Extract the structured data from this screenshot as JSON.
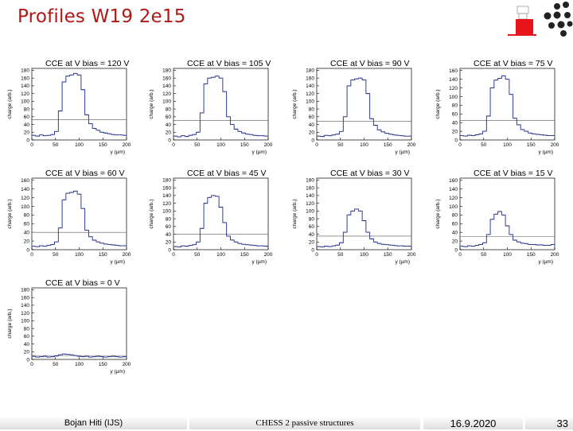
{
  "slide": {
    "title": "Profiles W19 2e15",
    "footer": {
      "author": "Bojan Hiti (IJS)",
      "subject": "CHESS 2 passive structures",
      "date": "16.9.2020",
      "page": "33"
    }
  },
  "colors": {
    "title": "#b01818",
    "logo": "#e8141b",
    "series": "#1c2a8a",
    "hline": "#000000"
  },
  "chart_data": [
    {
      "type": "line",
      "title": "CCE at V bias =  120 V",
      "xlabel": "y (µm)",
      "ylabel": "charge (arb.)",
      "xlim": [
        0,
        200
      ],
      "ylim": [
        0,
        185
      ],
      "yticks": [
        0,
        20,
        40,
        60,
        80,
        100,
        120,
        140,
        160,
        180
      ],
      "xticks": [
        0,
        50,
        100,
        150,
        200
      ],
      "threshold": 52,
      "x": [
        0,
        8,
        16,
        24,
        32,
        40,
        48,
        56,
        64,
        72,
        80,
        88,
        96,
        104,
        112,
        120,
        128,
        136,
        144,
        152,
        160,
        168,
        176,
        184,
        192,
        200
      ],
      "y": [
        12,
        10,
        13,
        11,
        12,
        14,
        22,
        75,
        150,
        165,
        168,
        172,
        168,
        130,
        65,
        42,
        30,
        25,
        20,
        18,
        16,
        14,
        13,
        13,
        12,
        12
      ]
    },
    {
      "type": "line",
      "title": "CCE at V bias =  105 V",
      "xlabel": "y (µm)",
      "ylabel": "charge (arb.)",
      "xlim": [
        0,
        200
      ],
      "ylim": [
        0,
        185
      ],
      "yticks": [
        0,
        20,
        40,
        60,
        80,
        100,
        120,
        140,
        160,
        180
      ],
      "xticks": [
        0,
        50,
        100,
        150,
        200
      ],
      "threshold": 50,
      "x": [
        0,
        8,
        16,
        24,
        32,
        40,
        48,
        56,
        64,
        72,
        80,
        88,
        96,
        104,
        112,
        120,
        128,
        136,
        144,
        152,
        160,
        168,
        176,
        184,
        192,
        200
      ],
      "y": [
        10,
        8,
        11,
        9,
        12,
        14,
        20,
        70,
        145,
        160,
        162,
        165,
        160,
        125,
        60,
        40,
        28,
        22,
        18,
        15,
        14,
        12,
        11,
        11,
        10,
        10
      ]
    },
    {
      "type": "line",
      "title": "CCE at V bias =  90 V",
      "xlabel": "y (µm)",
      "ylabel": "charge (arb.)",
      "xlim": [
        0,
        200
      ],
      "ylim": [
        0,
        185
      ],
      "yticks": [
        0,
        20,
        40,
        60,
        80,
        100,
        120,
        140,
        160,
        180
      ],
      "xticks": [
        0,
        50,
        100,
        150,
        200
      ],
      "threshold": 48,
      "x": [
        0,
        8,
        16,
        24,
        32,
        40,
        48,
        56,
        64,
        72,
        80,
        88,
        96,
        104,
        112,
        120,
        128,
        136,
        144,
        152,
        160,
        168,
        176,
        184,
        192,
        200
      ],
      "y": [
        10,
        9,
        12,
        11,
        13,
        15,
        22,
        60,
        140,
        155,
        158,
        160,
        155,
        120,
        55,
        38,
        26,
        21,
        17,
        15,
        13,
        12,
        11,
        10,
        10,
        10
      ]
    },
    {
      "type": "line",
      "title": "CCE at V bias =  75 V",
      "xlabel": "y (µm)",
      "ylabel": "charge (arb.)",
      "xlim": [
        0,
        200
      ],
      "ylim": [
        0,
        165
      ],
      "yticks": [
        0,
        20,
        40,
        60,
        80,
        100,
        120,
        140,
        160
      ],
      "xticks": [
        0,
        50,
        100,
        150,
        200
      ],
      "threshold": 45,
      "x": [
        0,
        8,
        16,
        24,
        32,
        40,
        48,
        56,
        64,
        72,
        80,
        88,
        96,
        104,
        112,
        120,
        128,
        136,
        144,
        152,
        160,
        168,
        176,
        184,
        192,
        200
      ],
      "y": [
        10,
        9,
        11,
        10,
        12,
        14,
        20,
        55,
        120,
        138,
        142,
        148,
        140,
        105,
        50,
        35,
        24,
        20,
        16,
        14,
        13,
        12,
        11,
        10,
        10,
        10
      ]
    },
    {
      "type": "line",
      "title": "CCE at V bias =  60 V",
      "xlabel": "y (µm)",
      "ylabel": "charge (arb.)",
      "xlim": [
        0,
        200
      ],
      "ylim": [
        0,
        165
      ],
      "yticks": [
        0,
        20,
        40,
        60,
        80,
        100,
        120,
        140,
        160
      ],
      "xticks": [
        0,
        50,
        100,
        150,
        200
      ],
      "threshold": 40,
      "x": [
        0,
        8,
        16,
        24,
        32,
        40,
        48,
        56,
        64,
        72,
        80,
        88,
        96,
        104,
        112,
        120,
        128,
        136,
        144,
        152,
        160,
        168,
        176,
        184,
        192,
        200
      ],
      "y": [
        8,
        7,
        9,
        8,
        10,
        12,
        18,
        50,
        115,
        130,
        132,
        135,
        128,
        95,
        45,
        30,
        22,
        18,
        15,
        13,
        12,
        11,
        10,
        9,
        9,
        9
      ]
    },
    {
      "type": "line",
      "title": "CCE at V bias =  45 V",
      "xlabel": "y (µm)",
      "ylabel": "charge (arb.)",
      "xlim": [
        0,
        200
      ],
      "ylim": [
        0,
        185
      ],
      "yticks": [
        0,
        20,
        40,
        60,
        80,
        100,
        120,
        140,
        160,
        180
      ],
      "xticks": [
        0,
        50,
        100,
        150,
        200
      ],
      "threshold": 40,
      "x": [
        0,
        8,
        16,
        24,
        32,
        40,
        48,
        56,
        64,
        72,
        80,
        88,
        96,
        104,
        112,
        120,
        128,
        136,
        144,
        152,
        160,
        168,
        176,
        184,
        192,
        200
      ],
      "y": [
        8,
        7,
        10,
        9,
        11,
        13,
        20,
        55,
        120,
        135,
        140,
        138,
        110,
        70,
        35,
        25,
        20,
        16,
        14,
        13,
        12,
        11,
        10,
        10,
        9,
        9
      ]
    },
    {
      "type": "line",
      "title": "CCE at V bias =  30 V",
      "xlabel": "y (µm)",
      "ylabel": "charge (arb.)",
      "xlim": [
        0,
        200
      ],
      "ylim": [
        0,
        185
      ],
      "yticks": [
        0,
        20,
        40,
        60,
        80,
        100,
        120,
        140,
        160,
        180
      ],
      "xticks": [
        0,
        50,
        100,
        150,
        200
      ],
      "threshold": 35,
      "x": [
        0,
        8,
        16,
        24,
        32,
        40,
        48,
        56,
        64,
        72,
        80,
        88,
        96,
        104,
        112,
        120,
        128,
        136,
        144,
        152,
        160,
        168,
        176,
        184,
        192,
        200
      ],
      "y": [
        8,
        7,
        9,
        8,
        10,
        12,
        18,
        45,
        90,
        100,
        105,
        100,
        75,
        45,
        28,
        20,
        16,
        14,
        13,
        12,
        11,
        10,
        10,
        9,
        9,
        9
      ]
    },
    {
      "type": "line",
      "title": "CCE at V bias =  15 V",
      "xlabel": "y (µm)",
      "ylabel": "charge (arb.)",
      "xlim": [
        0,
        200
      ],
      "ylim": [
        0,
        165
      ],
      "yticks": [
        0,
        20,
        40,
        60,
        80,
        100,
        120,
        140,
        160
      ],
      "xticks": [
        0,
        50,
        100,
        150,
        200
      ],
      "threshold": 30,
      "x": [
        0,
        8,
        16,
        24,
        32,
        40,
        48,
        56,
        64,
        72,
        80,
        88,
        96,
        104,
        112,
        120,
        128,
        136,
        144,
        152,
        160,
        168,
        176,
        184,
        192,
        200
      ],
      "y": [
        8,
        7,
        9,
        8,
        10,
        12,
        16,
        35,
        70,
        82,
        88,
        80,
        55,
        35,
        22,
        18,
        15,
        14,
        12,
        12,
        11,
        11,
        10,
        10,
        12,
        12
      ]
    },
    {
      "type": "line",
      "title": "CCE at V bias =  0 V",
      "xlabel": "y (µm)",
      "ylabel": "charge (arb.)",
      "xlim": [
        0,
        200
      ],
      "ylim": [
        0,
        185
      ],
      "yticks": [
        0,
        20,
        40,
        60,
        80,
        100,
        120,
        140,
        160,
        180
      ],
      "xticks": [
        0,
        50,
        100,
        150,
        200
      ],
      "threshold": 10,
      "x": [
        0,
        8,
        16,
        24,
        32,
        40,
        48,
        56,
        64,
        72,
        80,
        88,
        96,
        104,
        112,
        120,
        128,
        136,
        144,
        152,
        160,
        168,
        176,
        184,
        192,
        200
      ],
      "y": [
        8,
        6,
        7,
        8,
        6,
        7,
        9,
        12,
        14,
        13,
        12,
        10,
        8,
        7,
        8,
        6,
        7,
        8,
        7,
        6,
        7,
        8,
        7,
        6,
        7,
        7
      ]
    }
  ]
}
